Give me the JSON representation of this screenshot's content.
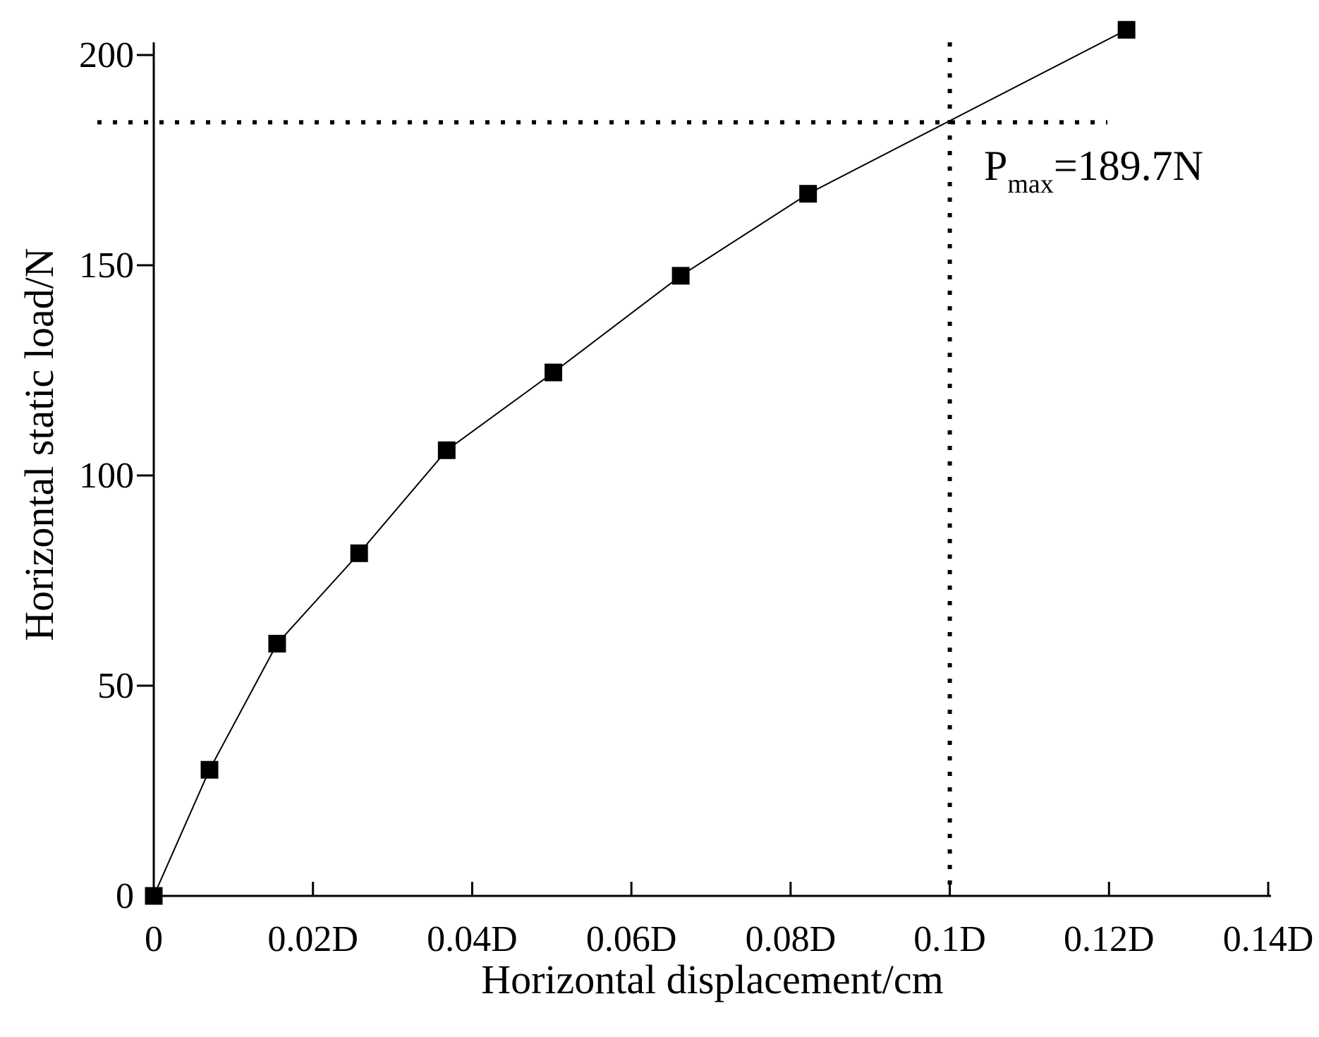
{
  "chart_data": {
    "type": "line",
    "title": "",
    "xlabel": "Horizontal displacement/cm",
    "ylabel": "Horizontal static load/N",
    "xlim": [
      0,
      0.14
    ],
    "ylim": [
      0,
      200
    ],
    "x_ticks": [
      0,
      0.02,
      0.04,
      0.06,
      0.08,
      0.1,
      0.12,
      0.14
    ],
    "x_tick_labels": [
      "0",
      "0.02D",
      "0.04D",
      "0.06D",
      "0.08D",
      "0.1D",
      "0.12D",
      "0.14D"
    ],
    "y_ticks": [
      0,
      50,
      100,
      150,
      200
    ],
    "y_tick_labels": [
      "0",
      "50",
      "100",
      "150",
      "200"
    ],
    "grid": false,
    "legend": false,
    "series": [
      {
        "marker": "square",
        "color": "#000000",
        "x": [
          0,
          0.007,
          0.0155,
          0.0258,
          0.0368,
          0.0502,
          0.0662,
          0.0822,
          0.1222
        ],
        "y": [
          0,
          30,
          60,
          81.5,
          106,
          124.5,
          147.5,
          167,
          206
        ]
      }
    ],
    "reference_lines": [
      {
        "orientation": "horizontal",
        "y": 184,
        "style": "dotted"
      },
      {
        "orientation": "vertical",
        "x": 0.1,
        "style": "dotted"
      }
    ],
    "annotation": {
      "main": "P",
      "subscript": "max",
      "value": "=189.7N"
    }
  }
}
